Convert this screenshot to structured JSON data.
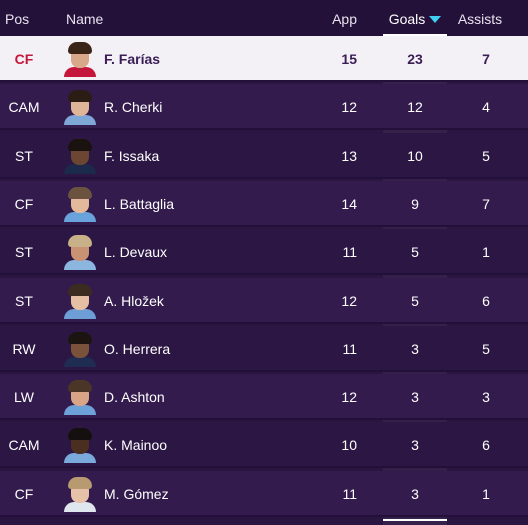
{
  "columns": {
    "pos": "Pos",
    "name": "Name",
    "app": "App",
    "goals": "Goals",
    "assists": "Assists",
    "sort_icon": "triangle-down-icon"
  },
  "colors": {
    "accent": "#3fd0f0",
    "selected_pos": "#c4163a",
    "row_alt": "#331b4d",
    "row_base": "#2c1744"
  },
  "rows": [
    {
      "pos": "CF",
      "name": "F. Farías",
      "app": "15",
      "goals": "23",
      "assists": "7"
    },
    {
      "pos": "CAM",
      "name": "R. Cherki",
      "app": "12",
      "goals": "12",
      "assists": "4"
    },
    {
      "pos": "ST",
      "name": "F. Issaka",
      "app": "13",
      "goals": "10",
      "assists": "5"
    },
    {
      "pos": "CF",
      "name": "L. Battaglia",
      "app": "14",
      "goals": "9",
      "assists": "7"
    },
    {
      "pos": "ST",
      "name": "L. Devaux",
      "app": "11",
      "goals": "5",
      "assists": "1"
    },
    {
      "pos": "ST",
      "name": "A. Hložek",
      "app": "12",
      "goals": "5",
      "assists": "6"
    },
    {
      "pos": "RW",
      "name": "O. Herrera",
      "app": "11",
      "goals": "3",
      "assists": "5"
    },
    {
      "pos": "LW",
      "name": "D. Ashton",
      "app": "12",
      "goals": "3",
      "assists": "3"
    },
    {
      "pos": "CAM",
      "name": "K. Mainoo",
      "app": "10",
      "goals": "3",
      "assists": "6"
    },
    {
      "pos": "CF",
      "name": "M. Gómez",
      "app": "11",
      "goals": "3",
      "assists": "1"
    }
  ]
}
